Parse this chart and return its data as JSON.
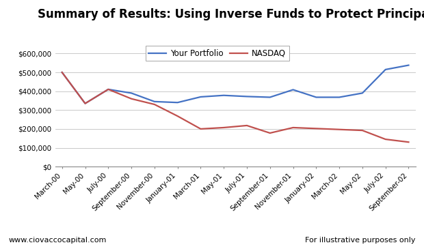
{
  "title": "Summary of Results: Using Inverse Funds to Protect Principal",
  "x_labels": [
    "March-00",
    "May-00",
    "July-00",
    "September-00",
    "November-00",
    "January-01",
    "March-01",
    "May-01",
    "July-01",
    "September-01",
    "November-01",
    "January-02",
    "March-02",
    "May-02",
    "July-02",
    "September-02"
  ],
  "portfolio": [
    500000,
    335000,
    410000,
    390000,
    345000,
    340000,
    370000,
    378000,
    372000,
    368000,
    408000,
    368000,
    368000,
    390000,
    515000,
    538000
  ],
  "nasdaq": [
    500000,
    335000,
    410000,
    360000,
    330000,
    268000,
    200000,
    207000,
    218000,
    178000,
    207000,
    202000,
    197000,
    192000,
    145000,
    130000
  ],
  "portfolio_color": "#4472C4",
  "nasdaq_color": "#C0504D",
  "bg_color": "#FFFFFF",
  "grid_color": "#C0C0C0",
  "ylim": [
    0,
    650000
  ],
  "yticks": [
    0,
    100000,
    200000,
    300000,
    400000,
    500000,
    600000
  ],
  "ytick_labels": [
    "$0",
    "$100,000",
    "$200,000",
    "$300,000",
    "$400,000",
    "$500,000",
    "$600,000"
  ],
  "legend_labels": [
    "Your Portfolio",
    "NASDAQ"
  ],
  "footer_left": "www.ciovaccocapital.com",
  "footer_right": "For illustrative purposes only",
  "title_fontsize": 12,
  "tick_fontsize": 7.5,
  "legend_fontsize": 8.5,
  "footer_fontsize": 8
}
